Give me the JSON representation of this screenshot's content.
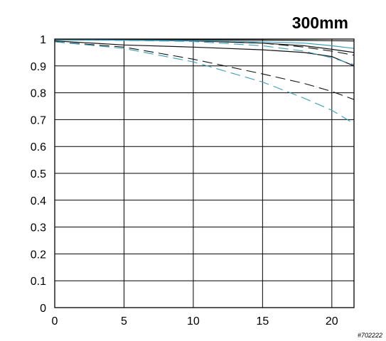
{
  "colors": {
    "black_series": "#111111",
    "blue_series": "#3a9fb8",
    "grid": "#000000"
  },
  "corner_code": "#702222",
  "chart_data": {
    "type": "line",
    "title": "300mm",
    "xlabel": "",
    "ylabel": "",
    "xlim": [
      0,
      21.6
    ],
    "ylim": [
      0,
      1
    ],
    "xticks": [
      0,
      5,
      10,
      15,
      20
    ],
    "yticks": [
      0,
      0.1,
      0.2,
      0.3,
      0.4,
      0.5,
      0.6,
      0.7,
      0.8,
      0.9,
      1
    ],
    "xtick_labels": [
      "0",
      "5",
      "10",
      "15",
      "20"
    ],
    "ytick_labels": [
      "0",
      "0.1",
      "0.2",
      "0.3",
      "0.4",
      "0.5",
      "0.6",
      "0.7",
      "0.8",
      "0.9",
      "1"
    ],
    "grid": true,
    "series": [
      {
        "color": "black",
        "style": "solid",
        "x": [
          0,
          5,
          10,
          15,
          18,
          20,
          21.6
        ],
        "y": [
          0.999,
          0.998,
          0.997,
          0.996,
          0.995,
          0.994,
          0.993
        ]
      },
      {
        "color": "black",
        "style": "solid",
        "x": [
          0,
          5,
          10,
          15,
          18,
          20,
          21.6
        ],
        "y": [
          0.997,
          0.996,
          0.993,
          0.985,
          0.975,
          0.962,
          0.95
        ]
      },
      {
        "color": "black",
        "style": "dashed",
        "x": [
          0,
          5,
          10,
          15,
          18,
          20,
          21.6
        ],
        "y": [
          0.998,
          0.996,
          0.993,
          0.985,
          0.97,
          0.955,
          0.94
        ]
      },
      {
        "color": "black",
        "style": "solid",
        "x": [
          0,
          5,
          10,
          15,
          18,
          20,
          21.6
        ],
        "y": [
          0.993,
          0.978,
          0.97,
          0.96,
          0.95,
          0.935,
          0.9
        ]
      },
      {
        "color": "black",
        "style": "dashed",
        "x": [
          0,
          5,
          10,
          15,
          18,
          20,
          21.6
        ],
        "y": [
          0.99,
          0.97,
          0.925,
          0.87,
          0.835,
          0.805,
          0.775
        ]
      },
      {
        "color": "blue",
        "style": "solid",
        "x": [
          0,
          5,
          10,
          15,
          18,
          20,
          21.6
        ],
        "y": [
          0.998,
          0.996,
          0.994,
          0.99,
          0.985,
          0.975,
          0.965
        ]
      },
      {
        "color": "blue",
        "style": "dashed",
        "x": [
          0,
          5,
          10,
          15,
          18,
          20,
          21.6
        ],
        "y": [
          0.997,
          0.995,
          0.991,
          0.975,
          0.955,
          0.93,
          0.905
        ]
      },
      {
        "color": "blue",
        "style": "dashed",
        "x": [
          0,
          5,
          10,
          15,
          18,
          20,
          21.6
        ],
        "y": [
          0.99,
          0.965,
          0.915,
          0.84,
          0.78,
          0.735,
          0.685
        ]
      }
    ]
  }
}
